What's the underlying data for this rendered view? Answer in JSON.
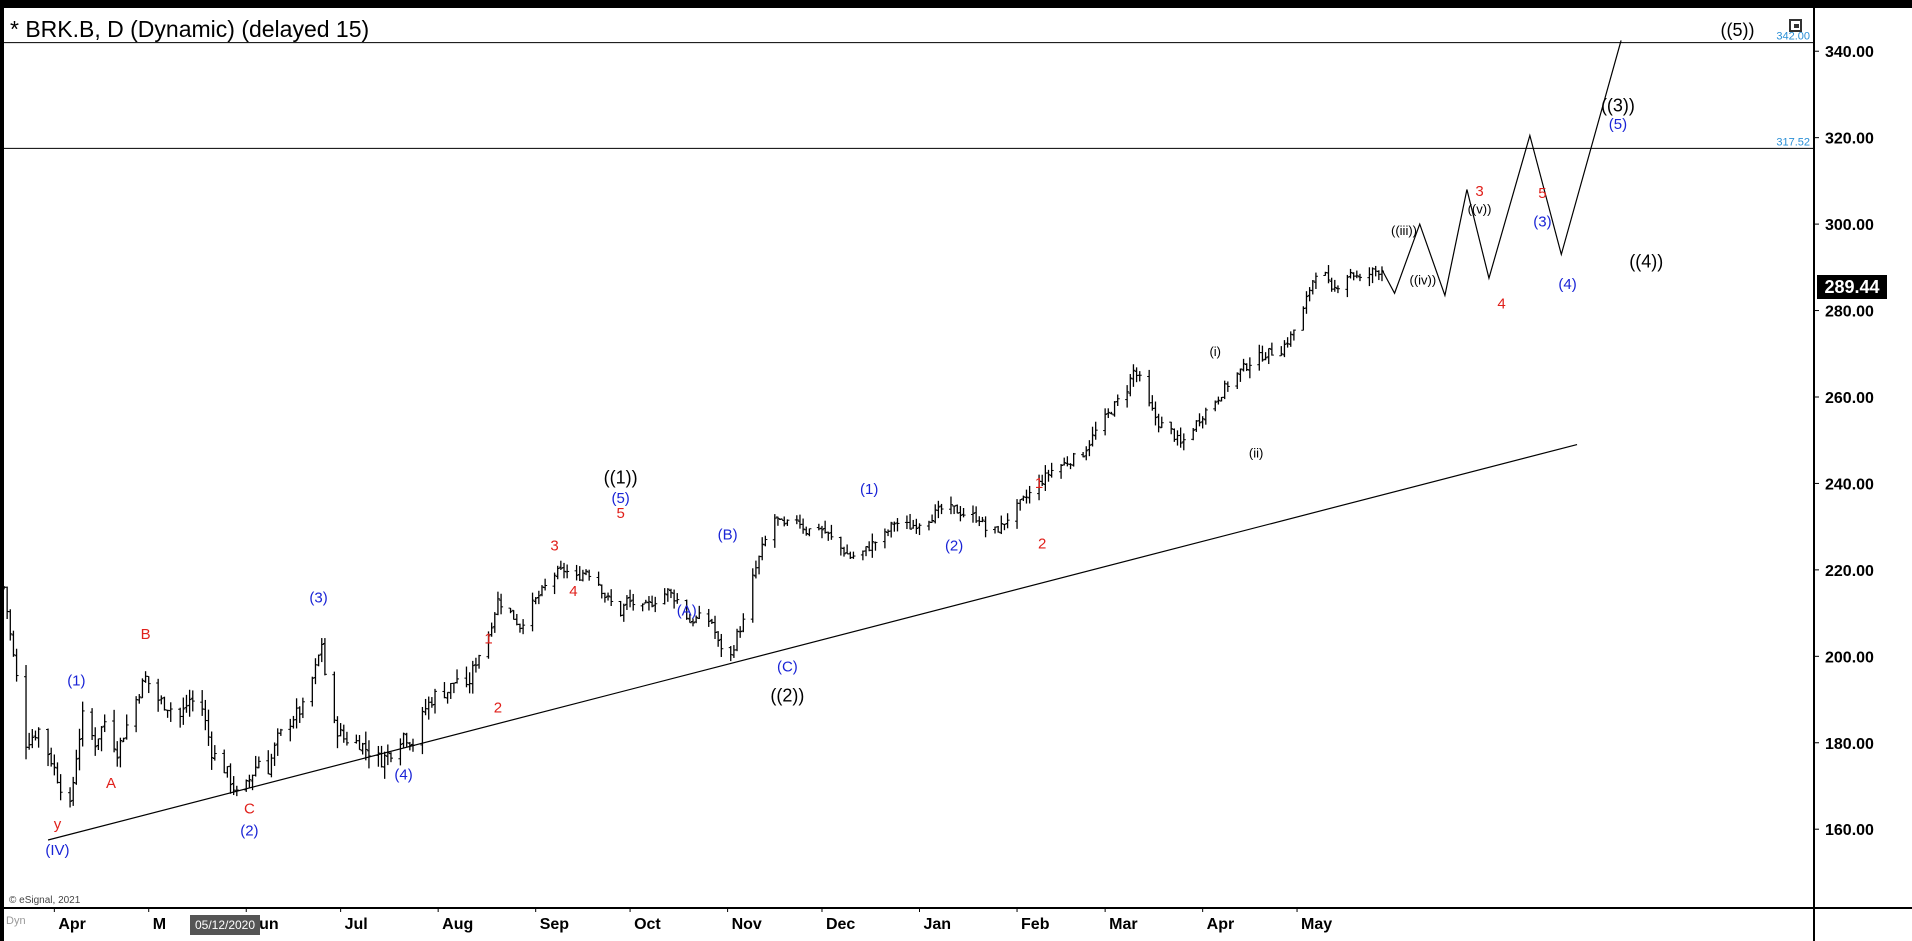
{
  "header": {
    "title": "* BRK.B, D (Dynamic) (delayed 15)"
  },
  "footer": {
    "copyright": "© eSignal, 2021",
    "dyn_label": "Dyn",
    "cursor_date": "05/12/2020"
  },
  "price_marker": {
    "last_price": "289.44"
  },
  "icons": {
    "corner": "window-restore-icon"
  },
  "colors": {
    "bars": "#000000",
    "red_labels": "#e0201b",
    "blue_labels": "#1a24d6",
    "black_labels": "#000000",
    "level_text": "#2a8fd6"
  },
  "chart_data": {
    "type": "bar",
    "title": "* BRK.B, D (Dynamic) (delayed 15)",
    "y_axis": {
      "range": [
        142,
        350
      ],
      "ticks": [
        160,
        180,
        200,
        220,
        240,
        260,
        280,
        300,
        320,
        340
      ],
      "tick_labels": [
        "160.00",
        "180.00",
        "200.00",
        "220.00",
        "240.00",
        "260.00",
        "280.00",
        "300.00",
        "320.00",
        "340.00"
      ]
    },
    "x_axis": {
      "start": "2020-03-16",
      "end": "2021-10-12",
      "months": [
        {
          "label": "Apr",
          "date": "2020-04-01"
        },
        {
          "label": "M",
          "date": "2020-05-01"
        },
        {
          "label": "Jun",
          "date": "2020-06-01"
        },
        {
          "label": "Jul",
          "date": "2020-07-01"
        },
        {
          "label": "Aug",
          "date": "2020-08-01"
        },
        {
          "label": "Sep",
          "date": "2020-09-01"
        },
        {
          "label": "Oct",
          "date": "2020-10-01"
        },
        {
          "label": "Nov",
          "date": "2020-11-01"
        },
        {
          "label": "Dec",
          "date": "2020-12-01"
        },
        {
          "label": "Jan",
          "date": "2021-01-01"
        },
        {
          "label": "Feb",
          "date": "2021-02-01"
        },
        {
          "label": "Mar",
          "date": "2021-03-01"
        },
        {
          "label": "Apr",
          "date": "2021-04-01"
        },
        {
          "label": "May",
          "date": "2021-05-01"
        }
      ]
    },
    "price_anchors": [
      [
        "2020-03-16",
        216
      ],
      [
        "2020-03-18",
        205
      ],
      [
        "2020-03-20",
        195
      ],
      [
        "2020-03-23",
        180
      ],
      [
        "2020-03-27",
        183
      ],
      [
        "2020-03-31",
        176
      ],
      [
        "2020-04-03",
        170
      ],
      [
        "2020-04-06",
        165
      ],
      [
        "2020-04-08",
        177
      ],
      [
        "2020-04-10",
        186
      ],
      [
        "2020-04-14",
        180
      ],
      [
        "2020-04-17",
        185
      ],
      [
        "2020-04-21",
        178
      ],
      [
        "2020-04-24",
        184
      ],
      [
        "2020-04-28",
        192
      ],
      [
        "2020-04-30",
        195
      ],
      [
        "2020-05-04",
        190
      ],
      [
        "2020-05-08",
        188
      ],
      [
        "2020-05-11",
        186
      ],
      [
        "2020-05-14",
        190
      ],
      [
        "2020-05-18",
        188
      ],
      [
        "2020-05-21",
        178
      ],
      [
        "2020-05-26",
        173
      ],
      [
        "2020-05-29",
        168
      ],
      [
        "2020-06-01",
        170
      ],
      [
        "2020-06-03",
        173
      ],
      [
        "2020-06-05",
        176
      ],
      [
        "2020-06-08",
        174
      ],
      [
        "2020-06-11",
        181
      ],
      [
        "2020-06-16",
        186
      ],
      [
        "2020-06-19",
        188
      ],
      [
        "2020-06-23",
        197
      ],
      [
        "2020-06-25",
        203
      ],
      [
        "2020-06-26",
        196
      ],
      [
        "2020-06-29",
        184
      ],
      [
        "2020-07-02",
        181
      ],
      [
        "2020-07-07",
        180
      ],
      [
        "2020-07-10",
        178
      ],
      [
        "2020-07-14",
        176
      ],
      [
        "2020-07-17",
        178
      ],
      [
        "2020-07-21",
        182
      ],
      [
        "2020-07-24",
        180
      ],
      [
        "2020-07-28",
        188
      ],
      [
        "2020-07-31",
        191
      ],
      [
        "2020-08-04",
        192
      ],
      [
        "2020-08-07",
        195
      ],
      [
        "2020-08-10",
        192
      ],
      [
        "2020-08-13",
        199
      ],
      [
        "2020-08-17",
        205
      ],
      [
        "2020-08-20",
        213
      ],
      [
        "2020-08-24",
        210
      ],
      [
        "2020-08-27",
        207
      ],
      [
        "2020-08-31",
        212
      ],
      [
        "2020-09-03",
        215
      ],
      [
        "2020-09-07",
        219
      ],
      [
        "2020-09-10",
        220
      ],
      [
        "2020-09-14",
        218
      ],
      [
        "2020-09-17",
        220
      ],
      [
        "2020-09-21",
        217
      ],
      [
        "2020-09-23",
        214
      ],
      [
        "2020-09-28",
        210
      ],
      [
        "2020-09-30",
        213
      ],
      [
        "2020-10-05",
        211
      ],
      [
        "2020-10-09",
        213
      ],
      [
        "2020-10-13",
        215
      ],
      [
        "2020-10-16",
        213
      ],
      [
        "2020-10-20",
        208
      ],
      [
        "2020-10-23",
        209
      ],
      [
        "2020-10-27",
        208
      ],
      [
        "2020-10-29",
        203
      ],
      [
        "2020-11-02",
        200
      ],
      [
        "2020-11-04",
        205
      ],
      [
        "2020-11-06",
        208
      ],
      [
        "2020-11-09",
        218
      ],
      [
        "2020-11-12",
        225
      ],
      [
        "2020-11-16",
        232
      ],
      [
        "2020-11-19",
        230
      ],
      [
        "2020-11-23",
        232
      ],
      [
        "2020-11-26",
        229
      ],
      [
        "2020-11-30",
        230
      ],
      [
        "2020-12-03",
        228
      ],
      [
        "2020-12-07",
        225
      ],
      [
        "2020-12-10",
        223
      ],
      [
        "2020-12-14",
        224
      ],
      [
        "2020-12-17",
        226
      ],
      [
        "2020-12-21",
        228
      ],
      [
        "2020-12-24",
        231
      ],
      [
        "2020-12-29",
        230
      ],
      [
        "2021-01-04",
        232
      ],
      [
        "2021-01-08",
        234
      ],
      [
        "2021-01-12",
        234
      ],
      [
        "2021-01-15",
        233
      ],
      [
        "2021-01-20",
        232
      ],
      [
        "2021-01-23",
        228
      ],
      [
        "2021-01-27",
        230
      ],
      [
        "2021-01-29",
        232
      ],
      [
        "2021-02-03",
        236
      ],
      [
        "2021-02-08",
        240
      ],
      [
        "2021-02-12",
        243
      ],
      [
        "2021-02-17",
        245
      ],
      [
        "2021-02-22",
        247
      ],
      [
        "2021-02-26",
        252
      ],
      [
        "2021-03-03",
        257
      ],
      [
        "2021-03-08",
        262
      ],
      [
        "2021-03-10",
        266
      ],
      [
        "2021-03-12",
        264
      ],
      [
        "2021-03-15",
        258
      ],
      [
        "2021-03-18",
        254
      ],
      [
        "2021-03-22",
        252
      ],
      [
        "2021-03-25",
        249
      ],
      [
        "2021-03-29",
        253
      ],
      [
        "2021-04-01",
        256
      ],
      [
        "2021-04-06",
        260
      ],
      [
        "2021-04-09",
        263
      ],
      [
        "2021-04-13",
        266
      ],
      [
        "2021-04-16",
        268
      ],
      [
        "2021-04-21",
        270
      ],
      [
        "2021-04-26",
        271
      ],
      [
        "2021-04-29",
        274
      ],
      [
        "2021-05-03",
        280
      ],
      [
        "2021-05-05",
        285
      ],
      [
        "2021-05-07",
        289
      ],
      [
        "2021-05-10",
        288
      ],
      [
        "2021-05-12",
        284
      ],
      [
        "2021-05-14",
        286
      ],
      [
        "2021-05-18",
        289
      ],
      [
        "2021-05-21",
        287
      ],
      [
        "2021-05-25",
        289
      ],
      [
        "2021-05-28",
        289.44
      ]
    ],
    "projection_path": [
      [
        "2021-05-28",
        289.44
      ],
      [
        "2021-06-01",
        284
      ],
      [
        "2021-06-09",
        300
      ],
      [
        "2021-06-17",
        283.5
      ],
      [
        "2021-06-24",
        308
      ],
      [
        "2021-07-01",
        287.5
      ],
      [
        "2021-07-14",
        320.5
      ],
      [
        "2021-07-24",
        293
      ],
      [
        "2021-08-12",
        342.5
      ]
    ],
    "trendline": [
      [
        "2020-03-30",
        157.5
      ],
      [
        "2021-07-29",
        249
      ]
    ],
    "horizontal_levels": [
      {
        "value": 342.0,
        "label": "342.00"
      },
      {
        "value": 317.52,
        "label": "317.52"
      }
    ],
    "wave_labels": [
      {
        "text": "(1)",
        "date": "2020-04-08",
        "price": 193.3,
        "color": "blue"
      },
      {
        "text": "A",
        "date": "2020-04-19",
        "price": 169.5,
        "color": "red"
      },
      {
        "text": "B",
        "date": "2020-04-30",
        "price": 204,
        "color": "red"
      },
      {
        "text": "y",
        "date": "2020-04-02",
        "price": 160,
        "color": "red"
      },
      {
        "text": "(IV)",
        "date": "2020-04-02",
        "price": 154,
        "color": "blue"
      },
      {
        "text": "C",
        "date": "2020-06-02",
        "price": 163.6,
        "color": "red"
      },
      {
        "text": "(2)",
        "date": "2020-06-02",
        "price": 158.5,
        "color": "blue"
      },
      {
        "text": "(3)",
        "date": "2020-06-24",
        "price": 212.5,
        "color": "blue"
      },
      {
        "text": "(4)",
        "date": "2020-07-21",
        "price": 171.5,
        "color": "blue"
      },
      {
        "text": "1",
        "date": "2020-08-17",
        "price": 203,
        "color": "red"
      },
      {
        "text": "2",
        "date": "2020-08-20",
        "price": 187,
        "color": "red"
      },
      {
        "text": "3",
        "date": "2020-09-07",
        "price": 224.5,
        "color": "red"
      },
      {
        "text": "4",
        "date": "2020-09-13",
        "price": 214,
        "color": "red"
      },
      {
        "text": "5",
        "date": "2020-09-28",
        "price": 232,
        "color": "red"
      },
      {
        "text": "(5)",
        "date": "2020-09-28",
        "price": 235.5,
        "color": "blue"
      },
      {
        "text": "((1))",
        "date": "2020-09-28",
        "price": 240,
        "color": "black"
      },
      {
        "text": "(A)",
        "date": "2020-10-19",
        "price": 209.5,
        "color": "blue"
      },
      {
        "text": "(B)",
        "date": "2020-11-01",
        "price": 227,
        "color": "blue"
      },
      {
        "text": "(C)",
        "date": "2020-11-20",
        "price": 196.5,
        "color": "blue"
      },
      {
        "text": "((2))",
        "date": "2020-11-20",
        "price": 189.5,
        "color": "black"
      },
      {
        "text": "(1)",
        "date": "2020-12-16",
        "price": 237.5,
        "color": "blue"
      },
      {
        "text": "(2)",
        "date": "2021-01-12",
        "price": 224.5,
        "color": "blue"
      },
      {
        "text": "1",
        "date": "2021-02-08",
        "price": 239,
        "color": "red"
      },
      {
        "text": "2",
        "date": "2021-02-09",
        "price": 225,
        "color": "red"
      },
      {
        "text": "(i)",
        "date": "2021-04-05",
        "price": 269.5,
        "color": "black"
      },
      {
        "text": "(ii)",
        "date": "2021-04-18",
        "price": 246,
        "color": "black"
      },
      {
        "text": "((iii))",
        "date": "2021-06-04",
        "price": 297.5,
        "color": "black"
      },
      {
        "text": "((iv))",
        "date": "2021-06-10",
        "price": 286,
        "color": "black"
      },
      {
        "text": "3",
        "date": "2021-06-28",
        "price": 306.5,
        "color": "red"
      },
      {
        "text": "((v))",
        "date": "2021-06-28",
        "price": 302.5,
        "color": "black"
      },
      {
        "text": "4",
        "date": "2021-07-05",
        "price": 280.5,
        "color": "red"
      },
      {
        "text": "(3)",
        "date": "2021-07-18",
        "price": 299.5,
        "color": "blue"
      },
      {
        "text": "5",
        "date": "2021-07-18",
        "price": 306,
        "color": "red"
      },
      {
        "text": "(4)",
        "date": "2021-07-26",
        "price": 285,
        "color": "blue"
      },
      {
        "text": "(5)",
        "date": "2021-08-11",
        "price": 322,
        "color": "blue"
      },
      {
        "text": "((3))",
        "date": "2021-08-11",
        "price": 326,
        "color": "black"
      },
      {
        "text": "((4))",
        "date": "2021-08-20",
        "price": 290,
        "color": "black"
      },
      {
        "text": "((5))",
        "date": "2021-09-18",
        "price": 343.5,
        "color": "black"
      }
    ]
  }
}
